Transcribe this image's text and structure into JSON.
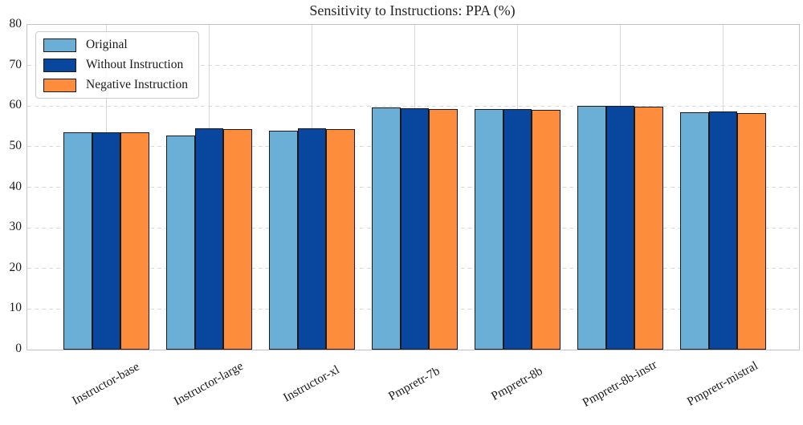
{
  "title": "Sensitivity to Instructions: PPA (%)",
  "chart_data": {
    "type": "bar",
    "title": "Sensitivity to Instructions: PPA (%)",
    "categories": [
      "Instructor-base",
      "Instructor-large",
      "Instructor-xl",
      "Pmpretr-7b",
      "Pmpretr-8b",
      "Pmpretr-8b-instr",
      "Pmpretr-mistral"
    ],
    "series": [
      {
        "name": "Original",
        "color": "#6baed6",
        "values": [
          53.5,
          52.8,
          53.9,
          59.7,
          59.2,
          60.0,
          58.4
        ]
      },
      {
        "name": "Without Instruction",
        "color": "#08479d",
        "values": [
          53.6,
          54.5,
          54.5,
          59.4,
          59.2,
          60.0,
          58.7
        ]
      },
      {
        "name": "Negative Instruction",
        "color": "#fd8d3c",
        "values": [
          53.5,
          54.4,
          54.4,
          59.3,
          59.1,
          59.9,
          58.3
        ]
      }
    ],
    "xlabel": "",
    "ylabel": "",
    "ylim": [
      0,
      80
    ],
    "yticks": [
      0,
      10,
      20,
      30,
      40,
      50,
      60,
      70,
      80
    ],
    "bar_edge_color": "#1a1a1a",
    "grid": {
      "horizontal": "dashed",
      "vertical": "solid-at-category-centers"
    },
    "legend": {
      "position": "upper-left",
      "labels": [
        "Original",
        "Without Instruction",
        "Negative Instruction"
      ]
    }
  }
}
